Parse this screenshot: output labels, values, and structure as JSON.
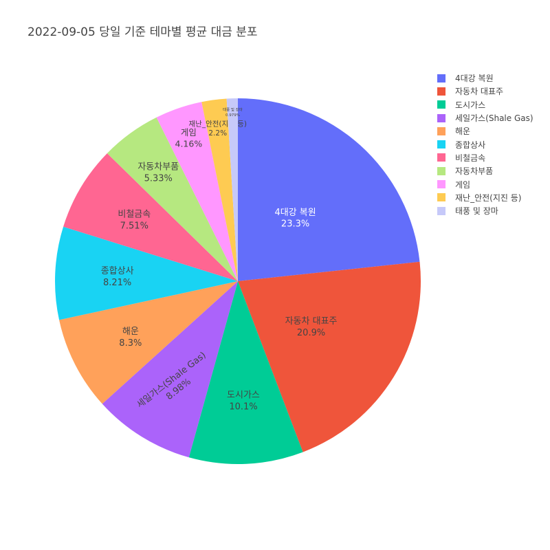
{
  "chart_data": {
    "type": "pie",
    "title": "2022-09-05 당일 기준 테마별 평균 대금 분포",
    "categories": [
      "4대강 복원",
      "자동차 대표주",
      "도시가스",
      "세일가스(Shale Gas)",
      "해운",
      "종합상사",
      "비철금속",
      "자동차부품",
      "게임",
      "재난_안전(지진 등)",
      "태풍 및 장마"
    ],
    "values": [
      23.3,
      20.9,
      10.1,
      8.98,
      8.3,
      8.21,
      7.51,
      5.33,
      4.16,
      2.2,
      0.979
    ],
    "percent_labels": [
      "23.3%",
      "20.9%",
      "10.1%",
      "8.98%",
      "8.3%",
      "8.21%",
      "7.51%",
      "5.33%",
      "4.16%",
      "2.2%",
      "0.979%"
    ],
    "colors": [
      "#636efa",
      "#EF553B",
      "#00cc96",
      "#ab63fa",
      "#FFA15A",
      "#19d3f3",
      "#FF6692",
      "#B6E880",
      "#FF97FF",
      "#FECB52",
      "#c6c9f9"
    ],
    "direction": "clockwise",
    "start_angle": "12 o'clock",
    "legend_position": "top-right"
  }
}
